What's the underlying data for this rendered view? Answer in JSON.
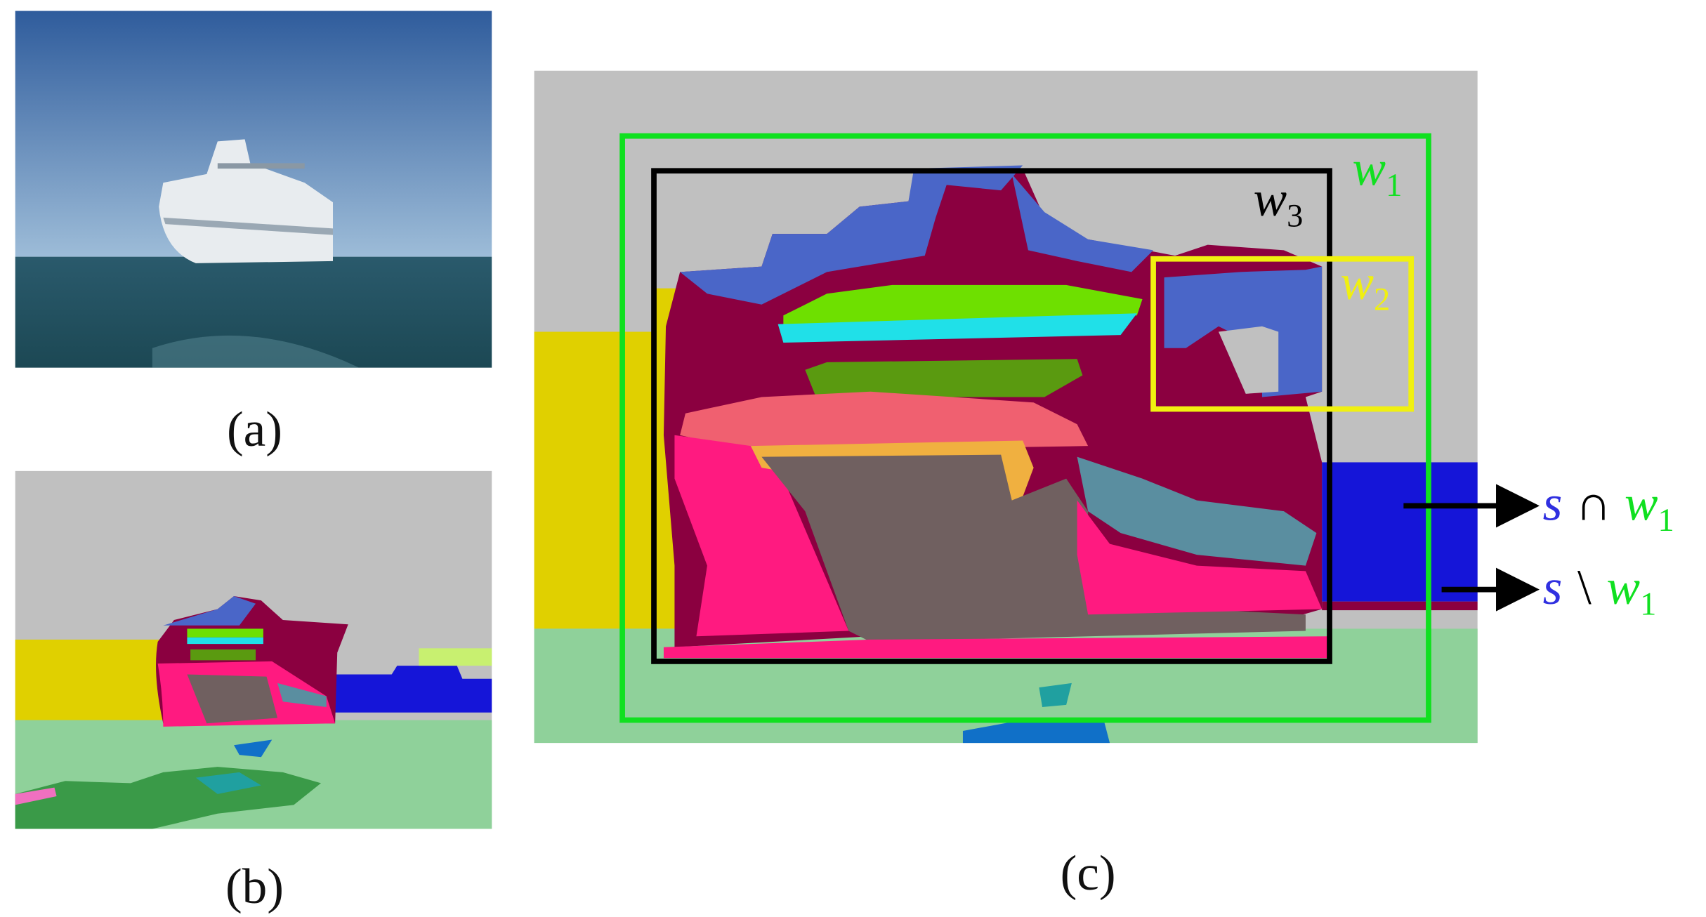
{
  "figure": {
    "panels": [
      {
        "caption": "(a)"
      },
      {
        "caption": "(b)"
      },
      {
        "caption": "(c)"
      }
    ],
    "windows": [
      {
        "symbol": "w",
        "index": "1"
      },
      {
        "symbol": "w",
        "index": "3"
      },
      {
        "symbol": "w",
        "index": "2"
      }
    ],
    "annotations": [
      {
        "set": "s",
        "operator": "∩",
        "symbol": "w",
        "index": "1"
      },
      {
        "set": "s",
        "operator": "\\",
        "symbol": "w",
        "index": "1"
      }
    ]
  }
}
